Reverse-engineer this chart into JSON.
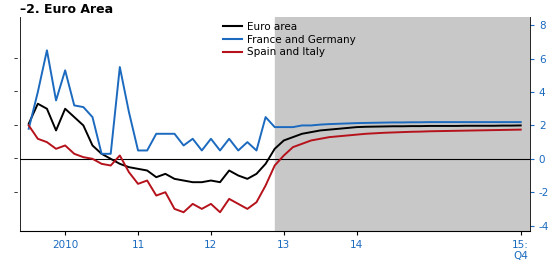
{
  "title": "–2. Euro Area",
  "x_tick_labels": [
    "2010",
    "11",
    "12",
    "13",
    "14",
    "15:\nQ4"
  ],
  "y_ticks_right": [
    8,
    6,
    4,
    2,
    0,
    -2,
    -4
  ],
  "ylim": [
    -4.3,
    8.5
  ],
  "xlim": [
    -0.5,
    27.5
  ],
  "shading_start": 13.5,
  "shading_color": "#c8c8c8",
  "legend_labels": [
    "Euro area",
    "France and Germany",
    "Spain and Italy"
  ],
  "legend_colors": [
    "#000000",
    "#1b6abf",
    "#b5121b"
  ],
  "x_tick_positions": [
    2,
    6,
    10,
    14,
    18,
    27
  ],
  "euro_area_y": [
    2.1,
    3.3,
    3.0,
    1.7,
    3.0,
    2.5,
    2.0,
    0.8,
    0.3,
    0.0,
    -0.3,
    -0.5,
    -0.6,
    -0.7,
    -1.1,
    -0.9,
    -1.2,
    -1.3,
    -1.4,
    -1.4,
    -1.3,
    -1.4,
    -0.7,
    -1.0,
    -1.2,
    -0.9,
    -0.3,
    0.6,
    1.1,
    1.3,
    1.5,
    1.6,
    1.7,
    1.75,
    1.8,
    1.85,
    1.9,
    1.92,
    1.93,
    1.94,
    1.95,
    1.95,
    1.96,
    1.96,
    1.97,
    1.97,
    1.97,
    1.97,
    1.98,
    1.98,
    1.98,
    1.98,
    1.99,
    1.99,
    2.0
  ],
  "france_germany_y": [
    1.8,
    4.0,
    6.5,
    3.5,
    5.3,
    3.2,
    3.1,
    2.5,
    0.3,
    0.3,
    5.5,
    2.8,
    0.5,
    0.5,
    1.5,
    1.5,
    1.5,
    0.8,
    1.2,
    0.5,
    1.2,
    0.5,
    1.2,
    0.5,
    1.0,
    0.5,
    2.5,
    1.9,
    1.9,
    1.9,
    2.0,
    2.0,
    2.05,
    2.08,
    2.1,
    2.12,
    2.14,
    2.15,
    2.16,
    2.17,
    2.18,
    2.18,
    2.19,
    2.19,
    2.2,
    2.2,
    2.2,
    2.2,
    2.2,
    2.2,
    2.2,
    2.2,
    2.2,
    2.2,
    2.2
  ],
  "spain_italy_y": [
    2.0,
    1.2,
    1.0,
    0.6,
    0.8,
    0.3,
    0.1,
    0.0,
    -0.3,
    -0.4,
    0.2,
    -0.8,
    -1.5,
    -1.3,
    -2.2,
    -2.0,
    -3.0,
    -3.2,
    -2.7,
    -3.0,
    -2.7,
    -3.2,
    -2.4,
    -2.7,
    -3.0,
    -2.6,
    -1.6,
    -0.4,
    0.2,
    0.7,
    0.9,
    1.1,
    1.2,
    1.3,
    1.35,
    1.4,
    1.45,
    1.5,
    1.53,
    1.56,
    1.58,
    1.6,
    1.62,
    1.63,
    1.65,
    1.66,
    1.67,
    1.68,
    1.69,
    1.7,
    1.71,
    1.72,
    1.73,
    1.74,
    1.75
  ]
}
